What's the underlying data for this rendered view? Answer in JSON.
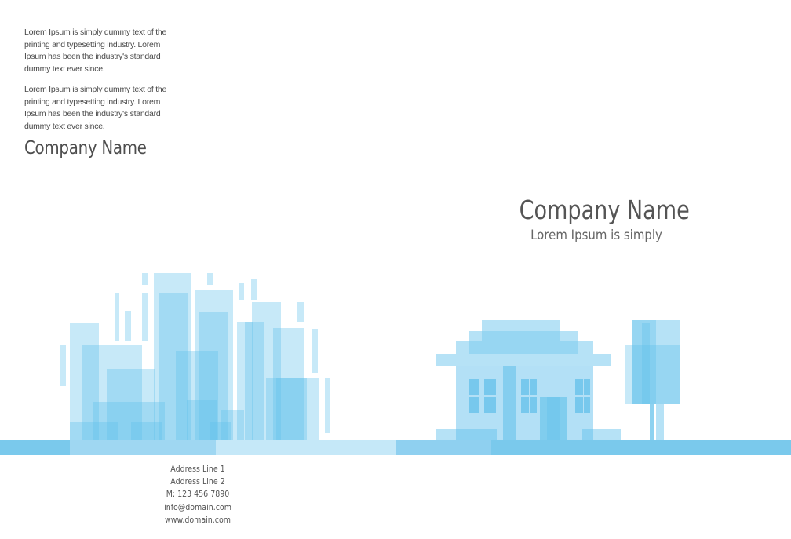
{
  "left_panel": {
    "paragraphs": [
      "Lorem Ipsum is simply dummy text of the printing and typesetting industry. Lorem Ipsum has been the industry's standard dummy text ever since.",
      "Lorem Ipsum is simply dummy text of the printing and typesetting industry. Lorem Ipsum has been the industry's standard dummy text ever since."
    ],
    "company_name": "Company Name"
  },
  "cover": {
    "company_name": "Company Name",
    "tagline": "Lorem Ipsum is simply"
  },
  "contact": {
    "address_line_1": "Address Line 1",
    "address_line_2": "Address Line 2",
    "mobile": "M: 123 456 7890",
    "email": "info@domain.com",
    "website": "www.domain.com"
  },
  "colors": {
    "accent_light": "#a8dcf4",
    "accent_mid": "#6cc3ea",
    "accent_dark": "#3fb0e6",
    "text": "#4d4d4d"
  },
  "illustrations": [
    "city-skyline-icon",
    "house-icon",
    "tree-icon"
  ]
}
